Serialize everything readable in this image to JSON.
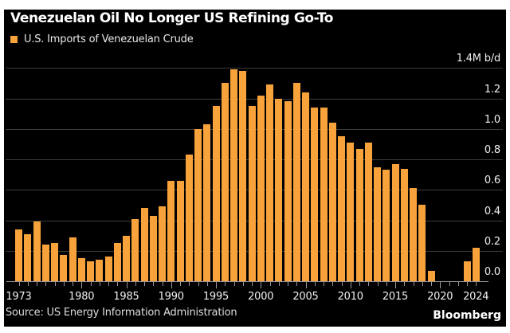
{
  "header": {
    "title": "Venezuelan Oil No Longer US Refining Go-To",
    "legend_label": "U.S. Imports of Venezuelan Crude"
  },
  "footer": {
    "source": "Source: US Energy Information Administration",
    "logo": "Bloomberg"
  },
  "colors": {
    "page_background": "#ffffff",
    "chart_background": "#000000",
    "bar": "#f7a23b",
    "gridline": "#3d3d3d",
    "axis": "#989898",
    "title_text": "#ffffff",
    "label_text": "#f0f0f0"
  },
  "chart_data": {
    "type": "bar",
    "title": "Venezuelan Oil No Longer US Refining Go-To",
    "legend": [
      "U.S. Imports of Venezuelan Crude"
    ],
    "legend_position": "top-left",
    "unit": "M b/d",
    "grid": true,
    "ylim": [
      0,
      1.4
    ],
    "x": [
      1973,
      1974,
      1975,
      1976,
      1977,
      1978,
      1979,
      1980,
      1981,
      1982,
      1983,
      1984,
      1985,
      1986,
      1987,
      1988,
      1989,
      1990,
      1991,
      1992,
      1993,
      1994,
      1995,
      1996,
      1997,
      1998,
      1999,
      2000,
      2001,
      2002,
      2003,
      2004,
      2005,
      2006,
      2007,
      2008,
      2009,
      2010,
      2011,
      2012,
      2013,
      2014,
      2015,
      2016,
      2017,
      2018,
      2019,
      2020,
      2021,
      2022,
      2023,
      2024
    ],
    "values": [
      0.34,
      0.31,
      0.39,
      0.24,
      0.25,
      0.17,
      0.29,
      0.15,
      0.13,
      0.14,
      0.16,
      0.25,
      0.3,
      0.41,
      0.48,
      0.43,
      0.49,
      0.66,
      0.66,
      0.83,
      1.0,
      1.03,
      1.15,
      1.3,
      1.39,
      1.38,
      1.15,
      1.22,
      1.29,
      1.2,
      1.18,
      1.3,
      1.24,
      1.14,
      1.14,
      1.04,
      0.95,
      0.91,
      0.87,
      0.91,
      0.75,
      0.73,
      0.77,
      0.74,
      0.61,
      0.5,
      0.07,
      0,
      0,
      0,
      0.13,
      0.22
    ],
    "yticks": [
      {
        "label": "1.4M b/d",
        "value": 1.4
      },
      {
        "label": "1.2",
        "value": 1.2
      },
      {
        "label": "1.0",
        "value": 1.0
      },
      {
        "label": "0.8",
        "value": 0.8
      },
      {
        "label": "0.6",
        "value": 0.6
      },
      {
        "label": "0.4",
        "value": 0.4
      },
      {
        "label": "0.2",
        "value": 0.2
      },
      {
        "label": "0.0",
        "value": 0.0
      }
    ],
    "xticks": [
      {
        "label": "1973",
        "year": 1973
      },
      {
        "label": "1980",
        "year": 1980
      },
      {
        "label": "1985",
        "year": 1985
      },
      {
        "label": "1990",
        "year": 1990
      },
      {
        "label": "1995",
        "year": 1995
      },
      {
        "label": "2000",
        "year": 2000
      },
      {
        "label": "2005",
        "year": 2005
      },
      {
        "label": "2010",
        "year": 2010
      },
      {
        "label": "2015",
        "year": 2015
      },
      {
        "label": "2020",
        "year": 2020
      },
      {
        "label": "2024",
        "year": 2024
      }
    ]
  }
}
